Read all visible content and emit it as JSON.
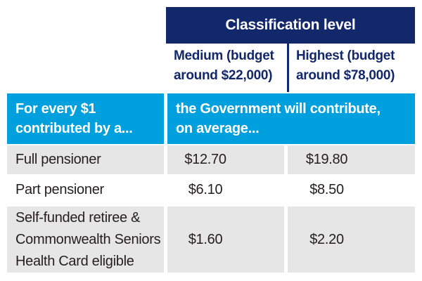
{
  "colors": {
    "navy": "#13286b",
    "bright_blue": "#009fdd",
    "row_gray": "#e6e6e6",
    "text_black": "#231f20"
  },
  "table": {
    "top_header": "Classification level",
    "column_headers": [
      {
        "text": "Medium (budget\naround $22,000)"
      },
      {
        "text": "Highest (budget\naround $78,000)"
      }
    ],
    "band_header": {
      "left": "For every $1\ncontributed by a...",
      "right": "the Government will contribute,\non average..."
    },
    "rows": [
      {
        "label": "Full pensioner",
        "medium": "$12.70",
        "highest": "$19.80"
      },
      {
        "label": "Part pensioner",
        "medium": "$6.10",
        "highest": "$8.50"
      },
      {
        "label": "Self-funded retiree &\nCommonwealth Seniors\nHealth Card eligible",
        "medium": "$1.60",
        "highest": "$2.20"
      }
    ]
  }
}
